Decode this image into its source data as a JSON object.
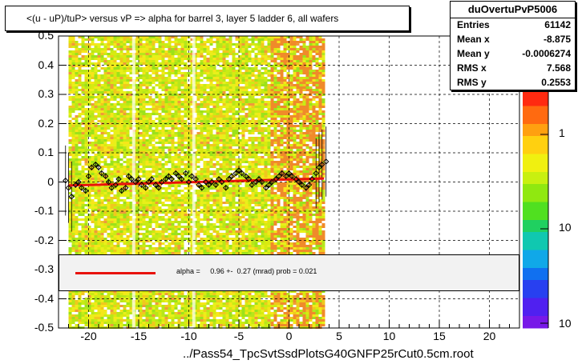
{
  "title": "<(u - uP)/tuP> versus   vP => alpha for barrel 3, layer 5 ladder 6, all wafers",
  "footer": "../Pass54_TpcSvtSsdPlotsG40GNFP25rCut0.5cm.root",
  "stats": {
    "name": "duOvertuPvP5006",
    "rows": [
      {
        "key": "Entries",
        "value": "61142"
      },
      {
        "key": "Mean x",
        "value": "-8.875"
      },
      {
        "key": "Mean y",
        "value": "-0.0006274"
      },
      {
        "key": "RMS x",
        "value": "7.568"
      },
      {
        "key": "RMS y",
        "value": "0.2553"
      }
    ]
  },
  "fit": {
    "text": "alpha =     0.96 +-  0.27 (mrad) prob = 0.021",
    "color": "#e8120c"
  },
  "colorbar": {
    "labels": [
      "1",
      "10",
      "10"
    ]
  },
  "chart_data": {
    "type": "scatter",
    "title": "<(u - uP)/tuP> versus   vP => alpha for barrel 3, layer 5 ladder 6, all wafers",
    "xlabel": "",
    "ylabel": "",
    "xlim": [
      -23,
      23
    ],
    "ylim": [
      -0.5,
      0.5
    ],
    "xticks": [
      -20,
      -15,
      -10,
      -5,
      0,
      5,
      10,
      15,
      20
    ],
    "yticks": [
      -0.5,
      -0.4,
      -0.3,
      -0.2,
      -0.1,
      0,
      0.1,
      0.2,
      0.3,
      0.4,
      0.5
    ],
    "grid": true,
    "heatmap_x_range": [
      -22,
      3.5
    ],
    "fit_line": {
      "x": [
        -22,
        3.5
      ],
      "y": [
        -0.012,
        0.012
      ],
      "color": "#e8120c"
    },
    "series": [
      {
        "values_x": [
          -22.3,
          -22.0,
          -21.7,
          -21.3,
          -21.0,
          -20.7,
          -20.3,
          -20.0,
          -19.7,
          -19.3,
          -19.0,
          -18.7,
          -18.3,
          -18.0,
          -17.7,
          -17.3,
          -17.0,
          -16.7,
          -16.3,
          -16.0,
          -15.7,
          -15.3,
          -15.0,
          -14.7,
          -14.3,
          -14.0,
          -13.7,
          -13.3,
          -13.0,
          -12.7,
          -12.3,
          -12.0,
          -11.7,
          -11.3,
          -11.0,
          -10.7,
          -10.3,
          -10.0,
          -9.7,
          -9.3,
          -9.0,
          -8.7,
          -8.3,
          -8.0,
          -7.7,
          -7.3,
          -7.0,
          -6.7,
          -6.3,
          -6.0,
          -5.7,
          -5.3,
          -5.0,
          -4.7,
          -4.3,
          -4.0,
          -3.7,
          -3.3,
          -3.0,
          -2.7,
          -2.3,
          -2.0,
          -1.7,
          -1.3,
          -1.0,
          -0.7,
          -0.3,
          0.0,
          0.3,
          0.7,
          1.0,
          1.3,
          1.7,
          2.0,
          2.3,
          2.7,
          3.0,
          3.3,
          3.7
        ],
        "values_y": [
          0.005,
          -0.02,
          -0.05,
          -0.01,
          0.0,
          -0.02,
          -0.03,
          0.02,
          0.05,
          0.06,
          0.05,
          0.03,
          0.02,
          0.0,
          -0.02,
          -0.01,
          0.01,
          -0.03,
          -0.02,
          0.02,
          0.01,
          0.0,
          0.01,
          -0.01,
          -0.02,
          0.0,
          0.01,
          -0.01,
          -0.02,
          0.0,
          0.01,
          0.02,
          0.01,
          0.03,
          0.02,
          0.01,
          0.03,
          0.0,
          0.02,
          0.01,
          -0.01,
          -0.02,
          0.0,
          -0.01,
          0.0,
          -0.01,
          0.01,
          0.0,
          -0.02,
          0.01,
          0.02,
          0.03,
          0.04,
          0.03,
          0.02,
          0.01,
          -0.01,
          0.0,
          0.01,
          0.0,
          -0.02,
          -0.01,
          0.0,
          0.01,
          0.02,
          0.03,
          0.02,
          0.03,
          0.02,
          0.01,
          0.0,
          -0.01,
          -0.02,
          -0.01,
          0.01,
          0.03,
          0.05,
          0.06,
          0.07
        ]
      }
    ],
    "colorbar_labels": [
      "1",
      "10",
      "10"
    ]
  }
}
